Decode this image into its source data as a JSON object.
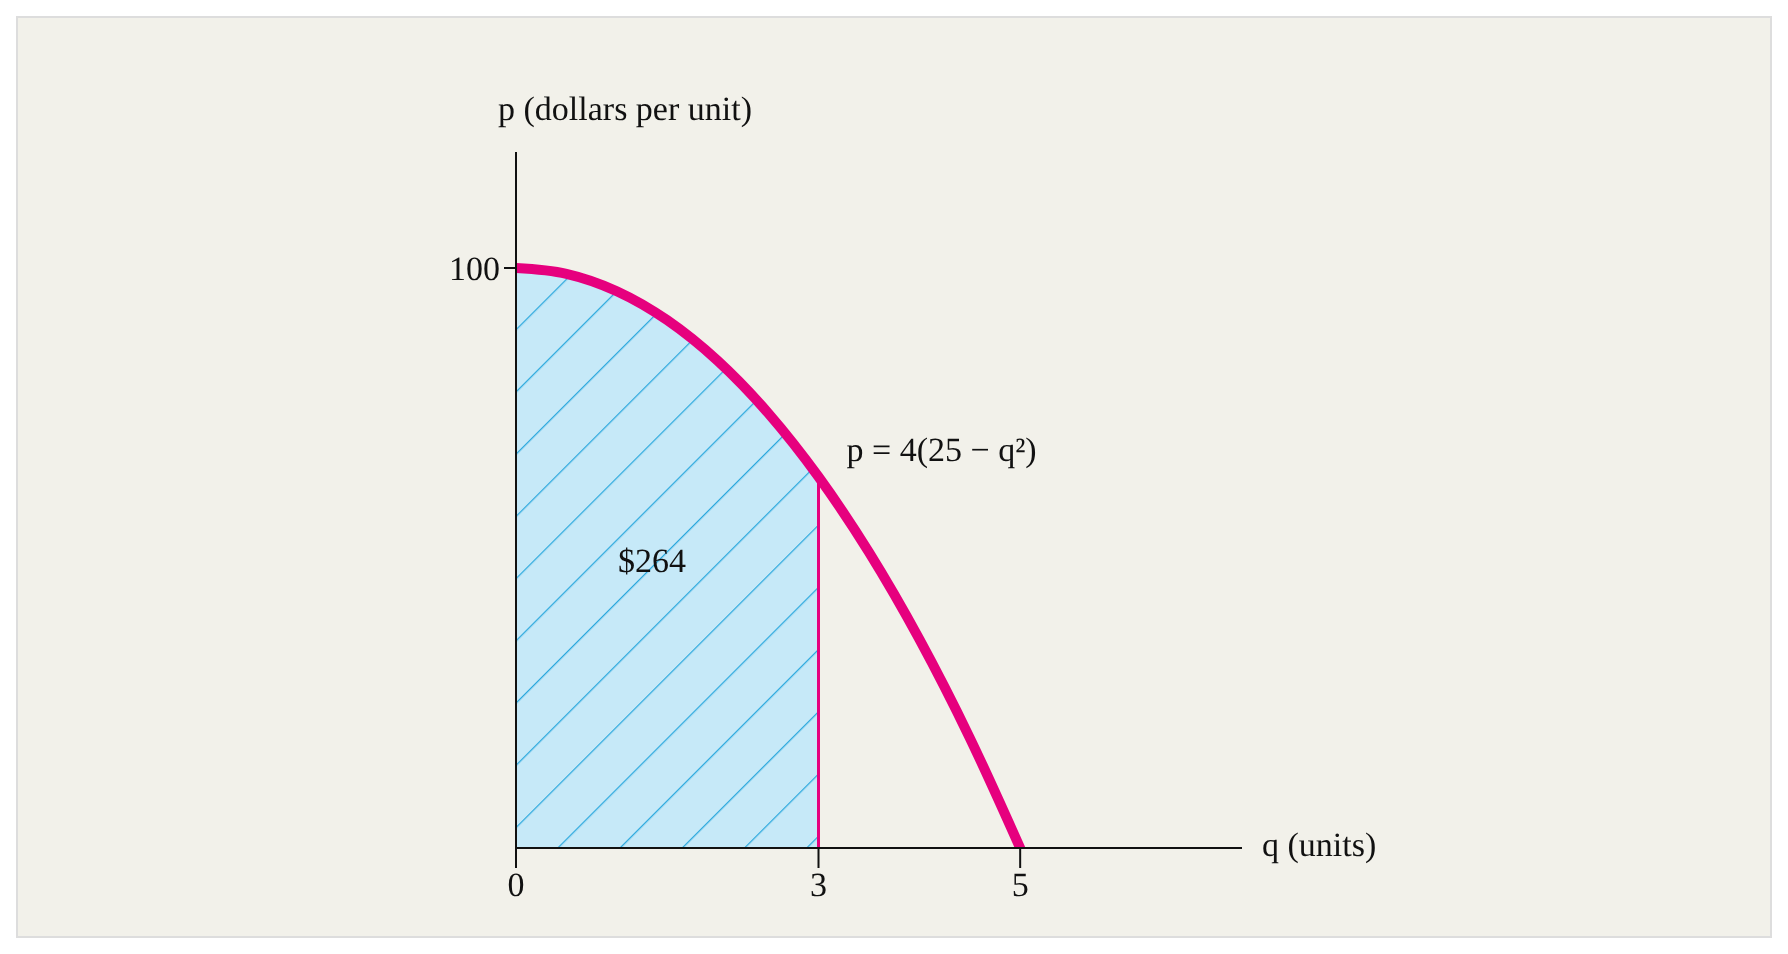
{
  "chart_data": {
    "type": "line",
    "xlabel": "q (units)",
    "ylabel": "p (dollars per unit)",
    "xlim": [
      0,
      7.2
    ],
    "ylim": [
      0,
      120
    ],
    "xticks": [
      0,
      3,
      5
    ],
    "yticks": [
      100
    ],
    "series": [
      {
        "name": "p = 4(25 − q²)",
        "color": "#e6007e",
        "x": [
          0,
          0.5,
          1,
          1.5,
          2,
          2.5,
          3,
          3.5,
          4,
          4.5,
          5
        ],
        "values": [
          100,
          99,
          96,
          91,
          84,
          75,
          64,
          51,
          36,
          19,
          0
        ]
      },
      {
        "type": "area",
        "color": "#c6e9f8",
        "x": [
          0,
          0.5,
          1,
          1.5,
          2,
          2.5,
          3
        ],
        "values": [
          100,
          99,
          96,
          91,
          84,
          75,
          64
        ]
      }
    ],
    "ref_lines": [
      {
        "axis": "x",
        "value": 3,
        "color": "#e6007e"
      }
    ],
    "annotations": [
      "$264"
    ],
    "grid": false,
    "legend": false,
    "marker": "none"
  }
}
